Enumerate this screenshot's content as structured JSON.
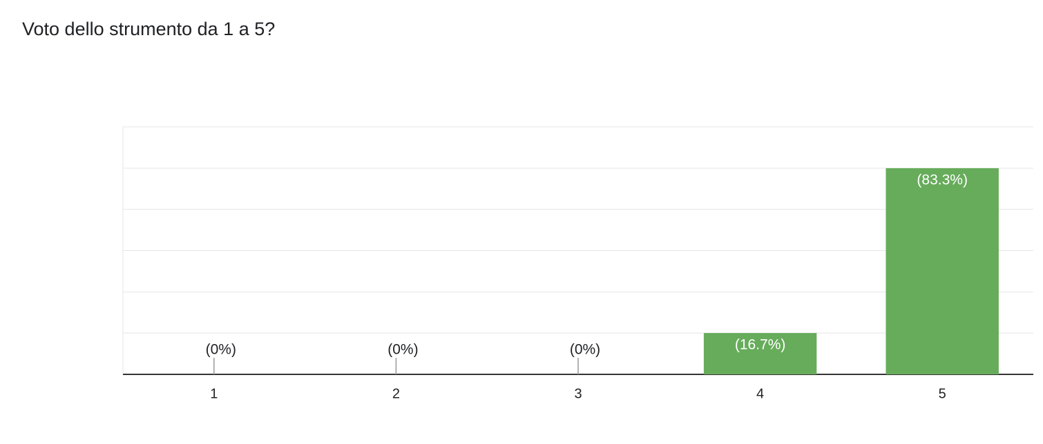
{
  "chart_data": {
    "type": "bar",
    "title": "Voto dello strumento da 1 a 5?",
    "categories": [
      "1",
      "2",
      "3",
      "4",
      "5"
    ],
    "values": [
      0,
      0,
      0,
      16.7,
      83.3
    ],
    "value_labels": [
      "(0%)",
      "(0%)",
      "(0%)",
      "(16.7%)",
      "(83.3%)"
    ],
    "color": "#67ac5b",
    "ylim": [
      0,
      100
    ],
    "yticks": [
      0,
      16.7,
      33.3,
      50,
      66.7,
      83.3,
      100
    ],
    "grid": true
  }
}
